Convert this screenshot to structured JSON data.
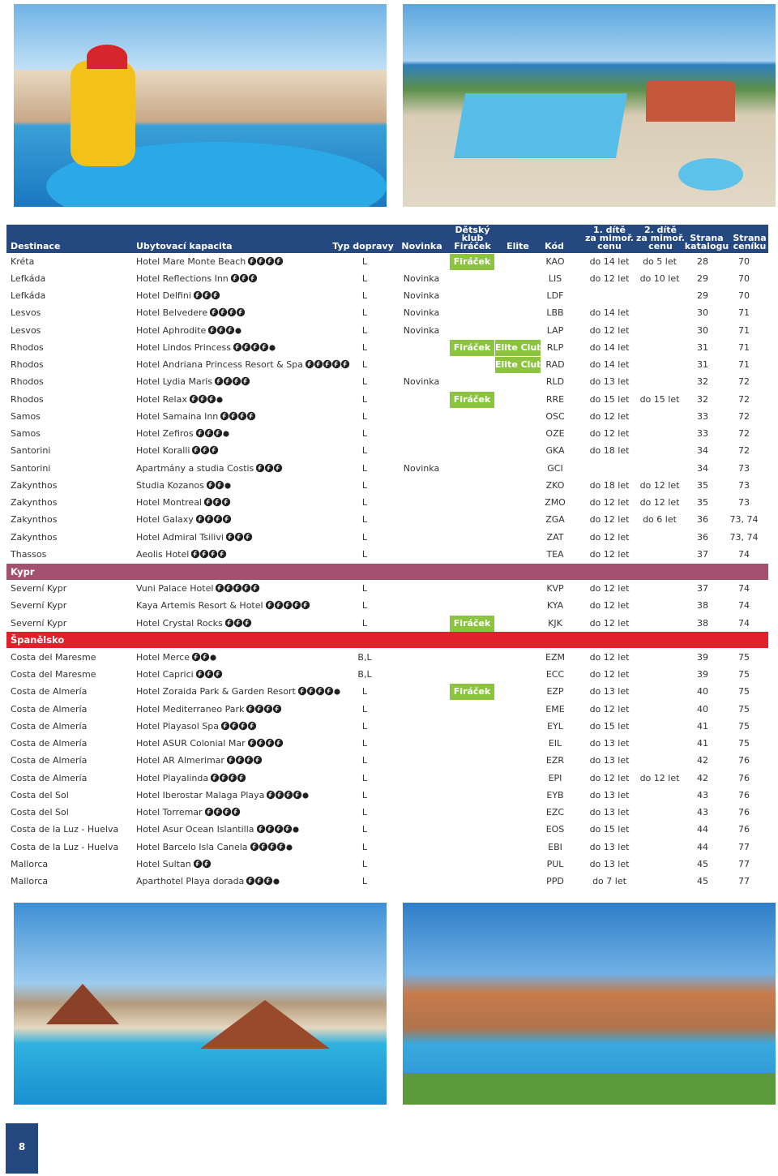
{
  "header": {
    "columns": [
      "Destinace",
      "Ubytovací kapacita",
      "Typ dopravy",
      "Novinka",
      "Dětský klub\nFiráček",
      "Elite",
      "Kód",
      "1. dítě\nza mimoř.\ncenu",
      "2. dítě\nza mimoř.\ncenu",
      "Strana\nkatalogu",
      "Strana\nceníku"
    ]
  },
  "sections": [
    {
      "rows": [
        {
          "destination": "Kréta",
          "hotel": "Hotel Mare Monte Beach",
          "stars": 4,
          "transport": "L",
          "firacek": "Firáček",
          "code": "KAO",
          "child1": "do 14 let",
          "child2": "do 5 let",
          "page_catalog": 28,
          "page_price": 70
        },
        {
          "destination": "Lefkáda",
          "hotel": "Hotel Reflections Inn",
          "stars": 3,
          "transport": "L",
          "novinka": "Novinka",
          "code": "LIS",
          "child1": "do 12 let",
          "child2": "do 10 let",
          "page_catalog": 29,
          "page_price": 70
        },
        {
          "destination": "Lefkáda",
          "hotel": "Hotel Delfini",
          "stars": 3,
          "transport": "L",
          "novinka": "Novinka",
          "code": "LDF",
          "page_catalog": 29,
          "page_price": 70
        },
        {
          "destination": "Lesvos",
          "hotel": "Hotel Belvedere",
          "stars": 4,
          "transport": "L",
          "novinka": "Novinka",
          "code": "LBB",
          "child1": "do 14 let",
          "page_catalog": 30,
          "page_price": 71
        },
        {
          "destination": "Lesvos",
          "hotel": "Hotel Aphrodite",
          "stars": 3.5,
          "transport": "L",
          "novinka": "Novinka",
          "code": "LAP",
          "child1": "do 12 let",
          "page_catalog": 30,
          "page_price": 71
        },
        {
          "destination": "Rhodos",
          "hotel": "Hotel Lindos Princess",
          "stars": 4.5,
          "transport": "L",
          "firacek": "Firáček",
          "elite": "Elite Club",
          "code": "RLP",
          "child1": "do 14 let",
          "page_catalog": 31,
          "page_price": 71
        },
        {
          "destination": "Rhodos",
          "hotel": "Hotel Andriana Princess Resort & Spa",
          "stars": 5,
          "transport": "L",
          "elite": "Elite Club",
          "code": "RAD",
          "child1": "do 14 let",
          "page_catalog": 31,
          "page_price": 71
        },
        {
          "destination": "Rhodos",
          "hotel": "Hotel Lydia Maris",
          "stars": 4,
          "transport": "L",
          "novinka": "Novinka",
          "code": "RLD",
          "child1": "do 13 let",
          "page_catalog": 32,
          "page_price": 72
        },
        {
          "destination": "Rhodos",
          "hotel": "Hotel Relax",
          "stars": 3.5,
          "transport": "L",
          "firacek": "Firáček",
          "code": "RRE",
          "child1": "do 15 let",
          "child2": "do 15 let",
          "page_catalog": 32,
          "page_price": 72
        },
        {
          "destination": "Samos",
          "hotel": "Hotel Samaina Inn",
          "stars": 4,
          "transport": "L",
          "code": "OSC",
          "child1": "do 12 let",
          "page_catalog": 33,
          "page_price": 72
        },
        {
          "destination": "Samos",
          "hotel": "Hotel Zefiros",
          "stars": 3.5,
          "transport": "L",
          "code": "OZE",
          "child1": "do 12 let",
          "page_catalog": 33,
          "page_price": 72
        },
        {
          "destination": "Santorini",
          "hotel": "Hotel Koralli",
          "stars": 3,
          "transport": "L",
          "code": "GKA",
          "child1": "do 18 let",
          "page_catalog": 34,
          "page_price": 72
        },
        {
          "destination": "Santorini",
          "hotel": "Apartmány a studia Costis",
          "stars": 3,
          "transport": "L",
          "novinka": "Novinka",
          "code": "GCI",
          "page_catalog": 34,
          "page_price": 73
        },
        {
          "destination": "Zakynthos",
          "hotel": "Studia Kozanos",
          "stars": 2.5,
          "transport": "L",
          "code": "ZKO",
          "child1": "do 18 let",
          "child2": "do 12 let",
          "page_catalog": 35,
          "page_price": 73
        },
        {
          "destination": "Zakynthos",
          "hotel": "Hotel Montreal",
          "stars": 3,
          "transport": "L",
          "code": "ZMO",
          "child1": "do 12 let",
          "child2": "do 12 let",
          "page_catalog": 35,
          "page_price": 73
        },
        {
          "destination": "Zakynthos",
          "hotel": "Hotel Galaxy",
          "stars": 4,
          "transport": "L",
          "code": "ZGA",
          "child1": "do 12 let",
          "child2": "do 6 let",
          "page_catalog": 36,
          "page_price": "73, 74"
        },
        {
          "destination": "Zakynthos",
          "hotel": "Hotel Admiral Tsilivi",
          "stars": 3,
          "transport": "L",
          "code": "ZAT",
          "child1": "do 12 let",
          "page_catalog": 36,
          "page_price": "73, 74"
        },
        {
          "destination": "Thassos",
          "hotel": "Aeolis Hotel",
          "stars": 4,
          "transport": "L",
          "code": "TEA",
          "child1": "do 12 let",
          "page_catalog": 37,
          "page_price": 74
        }
      ]
    },
    {
      "title": "Kypr",
      "color": "#a4506f",
      "rows": [
        {
          "destination": "Severní Kypr",
          "hotel": "Vuni Palace Hotel",
          "stars": 5,
          "transport": "L",
          "code": "KVP",
          "child1": "do 12 let",
          "page_catalog": 37,
          "page_price": 74
        },
        {
          "destination": "Severní Kypr",
          "hotel": "Kaya Artemis Resort & Hotel",
          "stars": 5,
          "transport": "L",
          "code": "KYA",
          "child1": "do 12 let",
          "page_catalog": 38,
          "page_price": 74
        },
        {
          "destination": "Severní Kypr",
          "hotel": "Hotel Crystal Rocks",
          "stars": 3,
          "transport": "L",
          "firacek": "Firáček",
          "code": "KJK",
          "child1": "do 12 let",
          "page_catalog": 38,
          "page_price": 74
        }
      ]
    },
    {
      "title": "Španělsko",
      "color": "#e2202c",
      "rows": [
        {
          "destination": "Costa del Maresme",
          "hotel": "Hotel Merce",
          "stars": 2.5,
          "transport": "B,L",
          "code": "EZM",
          "child1": "do 12 let",
          "page_catalog": 39,
          "page_price": 75
        },
        {
          "destination": "Costa del Maresme",
          "hotel": "Hotel Caprici",
          "stars": 3,
          "transport": "B,L",
          "code": "ECC",
          "child1": "do 12 let",
          "page_catalog": 39,
          "page_price": 75
        },
        {
          "destination": "Costa de Almería",
          "hotel": "Hotel Zoraida Park & Garden Resort",
          "stars": 4.5,
          "transport": "L",
          "firacek": "Firáček",
          "code": "EZP",
          "child1": "do 13 let",
          "page_catalog": 40,
          "page_price": 75
        },
        {
          "destination": "Costa de Almería",
          "hotel": "Hotel Mediterraneo Park",
          "stars": 4,
          "transport": "L",
          "code": "EME",
          "child1": "do 12 let",
          "page_catalog": 40,
          "page_price": 75
        },
        {
          "destination": "Costa de Almería",
          "hotel": "Hotel Playasol Spa",
          "stars": 4,
          "transport": "L",
          "code": "EYL",
          "child1": "do 15 let",
          "page_catalog": 41,
          "page_price": 75
        },
        {
          "destination": "Costa de Almería",
          "hotel": "Hotel ASUR Colonial Mar",
          "stars": 4,
          "transport": "L",
          "code": "EIL",
          "child1": "do 13 let",
          "page_catalog": 41,
          "page_price": 75
        },
        {
          "destination": "Costa de Almería",
          "hotel": "Hotel AR Almerimar",
          "stars": 4,
          "transport": "L",
          "code": "EZR",
          "child1": "do 13 let",
          "page_catalog": 42,
          "page_price": 76
        },
        {
          "destination": "Costa de Almería",
          "hotel": "Hotel Playalinda",
          "stars": 4,
          "transport": "L",
          "code": "EPI",
          "child1": "do 12 let",
          "child2": "do 12 let",
          "page_catalog": 42,
          "page_price": 76
        },
        {
          "destination": "Costa del Sol",
          "hotel": "Hotel Iberostar Malaga Playa",
          "stars": 4.5,
          "transport": "L",
          "code": "EYB",
          "child1": "do 13 let",
          "page_catalog": 43,
          "page_price": 76
        },
        {
          "destination": "Costa del Sol",
          "hotel": "Hotel Torremar",
          "stars": 4,
          "transport": "L",
          "code": "EZC",
          "child1": "do 13 let",
          "page_catalog": 43,
          "page_price": 76
        },
        {
          "destination": "Costa de la Luz - Huelva",
          "hotel": "Hotel Asur Ocean Islantilla",
          "stars": 4.5,
          "transport": "L",
          "code": "EOS",
          "child1": "do 15 let",
          "page_catalog": 44,
          "page_price": 76
        },
        {
          "destination": "Costa de la Luz - Huelva",
          "hotel": "Hotel Barcelo Isla Canela",
          "stars": 4.5,
          "transport": "L",
          "code": "EBI",
          "child1": "do 13 let",
          "page_catalog": 44,
          "page_price": 77
        },
        {
          "destination": "Mallorca",
          "hotel": "Hotel Sultan",
          "stars": 2,
          "transport": "L",
          "code": "PUL",
          "child1": "do 13 let",
          "page_catalog": 45,
          "page_price": 77
        },
        {
          "destination": "Mallorca",
          "hotel": "Aparthotel Playa dorada",
          "stars": 3.5,
          "transport": "L",
          "code": "PPD",
          "child1": "do 7 let",
          "page_catalog": 45,
          "page_price": 77
        }
      ]
    }
  ],
  "footer": {
    "page": "8"
  }
}
